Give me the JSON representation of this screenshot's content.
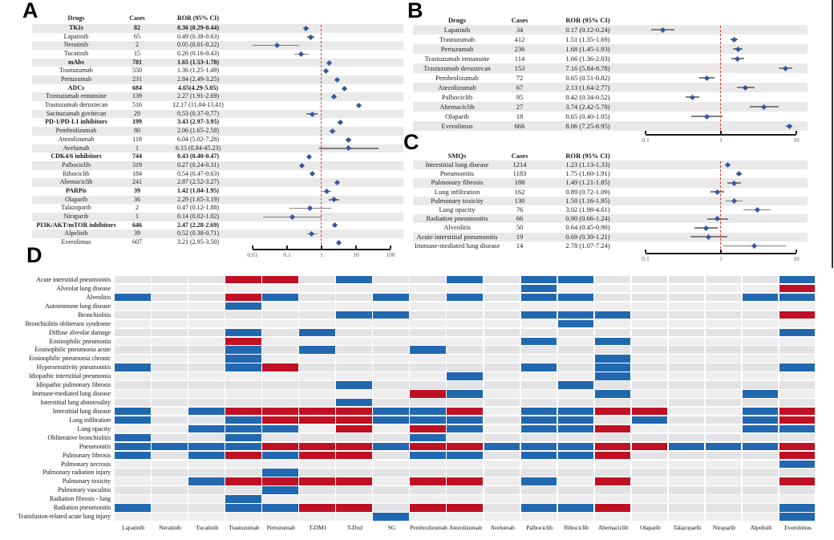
{
  "chart_data": [
    {
      "type": "forest",
      "panel": "A",
      "columns": [
        "Drugs",
        "Cases",
        "ROR (95% CI)"
      ],
      "axis": {
        "min": 0.01,
        "max": 100,
        "ticks": [
          "0.01",
          "0.1",
          "1",
          "10",
          "100"
        ],
        "ref_line": 1
      },
      "rows": [
        {
          "name": "TKIs",
          "cases": "82",
          "ror_text": "0.36 (0.29-0.44)",
          "ror": 0.36,
          "lo": 0.29,
          "hi": 0.44,
          "bold": true
        },
        {
          "name": "Lapatinib",
          "cases": "65",
          "ror_text": "0.49 (0.38-0.63)",
          "ror": 0.49,
          "lo": 0.38,
          "hi": 0.63,
          "bold": false
        },
        {
          "name": "Neratinib",
          "cases": "2",
          "ror_text": "0.05 (0.01-0.22)",
          "ror": 0.05,
          "lo": 0.01,
          "hi": 0.22,
          "bold": false
        },
        {
          "name": "Tucatinib",
          "cases": "15",
          "ror_text": "0.26 (0.16-0.43)",
          "ror": 0.26,
          "lo": 0.16,
          "hi": 0.43,
          "bold": false
        },
        {
          "name": "mAbs",
          "cases": "781",
          "ror_text": "1.65 (1.53-1.78)",
          "ror": 1.65,
          "lo": 1.53,
          "hi": 1.78,
          "bold": true
        },
        {
          "name": "Trastuzumab",
          "cases": "550",
          "ror_text": "1.36 (1.25-1.49)",
          "ror": 1.36,
          "lo": 1.25,
          "hi": 1.49,
          "bold": false
        },
        {
          "name": "Pertuzumab",
          "cases": "231",
          "ror_text": "2.84 (2.49-3.25)",
          "ror": 2.84,
          "lo": 2.49,
          "hi": 3.25,
          "bold": false
        },
        {
          "name": "ADCs",
          "cases": "684",
          "ror_text": "4.65(4.29-5.05)",
          "ror": 4.65,
          "lo": 4.29,
          "hi": 5.05,
          "bold": true
        },
        {
          "name": "Trastuzumab emtansine",
          "cases": "139",
          "ror_text": "2.27 (1.91-2.69)",
          "ror": 2.27,
          "lo": 1.91,
          "hi": 2.69,
          "bold": false
        },
        {
          "name": "Trastuzumab deruxtecan",
          "cases": "516",
          "ror_text": "12.17 (11.04-13.41)",
          "ror": 12.17,
          "lo": 11.04,
          "hi": 13.41,
          "bold": false
        },
        {
          "name": "Sacituzumab govitecan",
          "cases": "29",
          "ror_text": "0.53 (0.37-0.77)",
          "ror": 0.53,
          "lo": 0.37,
          "hi": 0.77,
          "bold": false
        },
        {
          "name": "PD-1/PD-L1 inhibitors",
          "cases": "199",
          "ror_text": "3.43 (2.97-3.95)",
          "ror": 3.43,
          "lo": 2.97,
          "hi": 3.95,
          "bold": true
        },
        {
          "name": "Pembrolizumab",
          "cases": "80",
          "ror_text": "2.06 (1.65-2.58)",
          "ror": 2.06,
          "lo": 1.65,
          "hi": 2.58,
          "bold": false
        },
        {
          "name": "Atezolizumab",
          "cases": "118",
          "ror_text": "6.04 (5.02-7.28)",
          "ror": 6.04,
          "lo": 5.02,
          "hi": 7.28,
          "bold": false
        },
        {
          "name": "Avelumab",
          "cases": "1",
          "ror_text": "6.15 (0.84-45.23)",
          "ror": 6.15,
          "lo": 0.84,
          "hi": 45.23,
          "bold": false
        },
        {
          "name": "CDK4/6 inhibitors",
          "cases": "744",
          "ror_text": "0.43 (0.40-0.47)",
          "ror": 0.43,
          "lo": 0.4,
          "hi": 0.47,
          "bold": true
        },
        {
          "name": "Palbociclib",
          "cases": "319",
          "ror_text": "0.27 (0.24-0.31)",
          "ror": 0.27,
          "lo": 0.24,
          "hi": 0.31,
          "bold": false
        },
        {
          "name": "Ribociclib",
          "cases": "184",
          "ror_text": "0.54 (0.47-0.63)",
          "ror": 0.54,
          "lo": 0.47,
          "hi": 0.63,
          "bold": false
        },
        {
          "name": "Abemaciclib",
          "cases": "241",
          "ror_text": "2.87 (2.52-3.27)",
          "ror": 2.87,
          "lo": 2.52,
          "hi": 3.27,
          "bold": false
        },
        {
          "name": "PARPis",
          "cases": "39",
          "ror_text": "1.42 (1.04-1.95)",
          "ror": 1.42,
          "lo": 1.04,
          "hi": 1.95,
          "bold": true
        },
        {
          "name": "Olaparib",
          "cases": "36",
          "ror_text": "2.29 (1.65-3.19)",
          "ror": 2.29,
          "lo": 1.65,
          "hi": 3.19,
          "bold": false
        },
        {
          "name": "Talazoparib",
          "cases": "2",
          "ror_text": "0.47 (0.12-1.88)",
          "ror": 0.47,
          "lo": 0.12,
          "hi": 1.88,
          "bold": false
        },
        {
          "name": "Niraparib",
          "cases": "1",
          "ror_text": "0.14 (0.02-1.02)",
          "ror": 0.14,
          "lo": 0.02,
          "hi": 1.02,
          "bold": false
        },
        {
          "name": "PI3K/AKT/mTOR inhibitors",
          "cases": "646",
          "ror_text": "2.47 (2.28-2.69)",
          "ror": 2.47,
          "lo": 2.28,
          "hi": 2.69,
          "bold": true
        },
        {
          "name": "Alpelisib",
          "cases": "39",
          "ror_text": "0.52 (0.38-0.71)",
          "ror": 0.52,
          "lo": 0.38,
          "hi": 0.71,
          "bold": false
        },
        {
          "name": "Everolimus",
          "cases": "607",
          "ror_text": "3.21 (2.95-3.50)",
          "ror": 3.21,
          "lo": 2.95,
          "hi": 3.5,
          "bold": false
        }
      ]
    },
    {
      "type": "forest",
      "panel": "B",
      "columns": [
        "Drugs",
        "Cases",
        "ROR (95% CI)"
      ],
      "axis": {
        "min": 0.1,
        "max": 10,
        "ticks": [
          "0.1",
          "1",
          "10"
        ],
        "ref_line": 1
      },
      "rows": [
        {
          "name": "Lapatinib",
          "cases": "34",
          "ror_text": "0.17 (0.12-0.24)",
          "ror": 0.17,
          "lo": 0.12,
          "hi": 0.24,
          "bold": false
        },
        {
          "name": "Trastuzumab",
          "cases": "412",
          "ror_text": "1.51 (1.35-1.69)",
          "ror": 1.51,
          "lo": 1.35,
          "hi": 1.69,
          "bold": false
        },
        {
          "name": "Pertuzumab",
          "cases": "236",
          "ror_text": "1.68 (1.45-1.93)",
          "ror": 1.68,
          "lo": 1.45,
          "hi": 1.93,
          "bold": false
        },
        {
          "name": "Trastuzumab emtansine",
          "cases": "114",
          "ror_text": "1.66 (1.36-2.03)",
          "ror": 1.66,
          "lo": 1.36,
          "hi": 2.03,
          "bold": false
        },
        {
          "name": "Trastuzumab deruxtecan",
          "cases": "153",
          "ror_text": "7.16 (5.84-8.78)",
          "ror": 7.16,
          "lo": 5.84,
          "hi": 8.78,
          "bold": false
        },
        {
          "name": "Pembrolizumab",
          "cases": "72",
          "ror_text": "0.65 (0.51-0.82)",
          "ror": 0.65,
          "lo": 0.51,
          "hi": 0.82,
          "bold": false
        },
        {
          "name": "Atezolizumab",
          "cases": "67",
          "ror_text": "2.13 (1.64-2.77)",
          "ror": 2.13,
          "lo": 1.64,
          "hi": 2.77,
          "bold": false
        },
        {
          "name": "Palbociclib",
          "cases": "95",
          "ror_text": "0.42 (0.34-0.52)",
          "ror": 0.42,
          "lo": 0.34,
          "hi": 0.52,
          "bold": false
        },
        {
          "name": "Abemaciclib",
          "cases": "27",
          "ror_text": "3.74 (2.42-5.78)",
          "ror": 3.74,
          "lo": 2.42,
          "hi": 5.78,
          "bold": false
        },
        {
          "name": "Olaparib",
          "cases": "18",
          "ror_text": "0.65 (0.40-1.05)",
          "ror": 0.65,
          "lo": 0.4,
          "hi": 1.05,
          "bold": false
        },
        {
          "name": "Everolimus",
          "cases": "666",
          "ror_text": "8.06 (7.25-8.95)",
          "ror": 8.06,
          "lo": 7.25,
          "hi": 8.95,
          "bold": false
        }
      ]
    },
    {
      "type": "forest",
      "panel": "C",
      "columns": [
        "SMQs",
        "Cases",
        "ROR (95% CI)"
      ],
      "axis": {
        "min": 0.1,
        "max": 10,
        "ticks": [
          "0.1",
          "1",
          "10"
        ],
        "ref_line": 1
      },
      "rows": [
        {
          "name": "Interstitial lung disease",
          "cases": "1214",
          "ror_text": "1.23 (1.13-1.33)",
          "ror": 1.23,
          "lo": 1.13,
          "hi": 1.33,
          "bold": false
        },
        {
          "name": "Pneumonitis",
          "cases": "1183",
          "ror_text": "1.75 (1.60-1.91)",
          "ror": 1.75,
          "lo": 1.6,
          "hi": 1.91,
          "bold": false
        },
        {
          "name": "Pulmonary fibrosis",
          "cases": "188",
          "ror_text": "1.49 (1.21-1.85)",
          "ror": 1.49,
          "lo": 1.21,
          "hi": 1.85,
          "bold": false
        },
        {
          "name": "Lung infiltration",
          "cases": "162",
          "ror_text": "0.89 (0.72-1.09)",
          "ror": 0.89,
          "lo": 0.72,
          "hi": 1.09,
          "bold": false
        },
        {
          "name": "Pulmonary toxicity",
          "cases": "130",
          "ror_text": "1.50 (1.16-1.95)",
          "ror": 1.5,
          "lo": 1.16,
          "hi": 1.95,
          "bold": false
        },
        {
          "name": "Lung opacity",
          "cases": "76",
          "ror_text": "3.02 (1.98-4.61)",
          "ror": 3.02,
          "lo": 1.98,
          "hi": 4.61,
          "bold": false
        },
        {
          "name": "Radiation pneumonitis",
          "cases": "66",
          "ror_text": "0.90 (0.66-1.24)",
          "ror": 0.9,
          "lo": 0.66,
          "hi": 1.24,
          "bold": false
        },
        {
          "name": "Alveolitis",
          "cases": "50",
          "ror_text": "0.64 (0.45-0.90)",
          "ror": 0.64,
          "lo": 0.45,
          "hi": 0.9,
          "bold": false
        },
        {
          "name": "Acute interstitial pneumonitis",
          "cases": "19",
          "ror_text": "0.69 (0.39-1.21)",
          "ror": 0.69,
          "lo": 0.39,
          "hi": 1.21,
          "bold": false
        },
        {
          "name": "Immune-mediated lung disease",
          "cases": "14",
          "ror_text": "2.78 (1.07-7.24)",
          "ror": 2.78,
          "lo": 1.07,
          "hi": 7.24,
          "bold": false
        }
      ]
    },
    {
      "type": "heatmap",
      "panel": "D",
      "x_drugs": [
        "Lapatinib",
        "Neratinib",
        "Tucatinib",
        "Trastuzumab",
        "Pertuzumab",
        "T-DM1",
        "T-Dxd",
        "SG",
        "Pembrolizumab",
        "Atezolizumab",
        "Avelumab",
        "Palbociclib",
        "Ribociclib",
        "Abemaciclib",
        "Olaparib",
        "Talazoparib",
        "Niraparib",
        "Alpelisib",
        "Everolimus"
      ],
      "y_conditions": [
        "Acute interstitial pneumonitis",
        "Alveolar lung disease",
        "Alveolitis",
        "Autoimmune lung disease",
        "Bronchiolitis",
        "Bronchiolitis obliterans syndrome",
        "Diffuse alveolar damage",
        "Eosinophilic pneumonia",
        "Eosinophilic pneumonia acute",
        "Eosinophilic pneumonia chronic",
        "Hypersensitivity pneumonitis",
        "Idiopathic interstitial pneumonia",
        "Idiopathic pulmonary fibrosis",
        "Immune-mediated lung disease",
        "Interstitial lung abnormality",
        "Interstitial lung disease",
        "Lung infiltration",
        "Lung opacity",
        "Obliterative bronchiolitis",
        "Pneumonitis",
        "Pulmonary fibrosis",
        "Pulmonary necrosis",
        "Pulmonary radiation injury",
        "Pulmonary toxicity",
        "Pulmonary vasculitis",
        "Radiation fibrosis - lung",
        "Radiation pneumonitis",
        "Transfusion-related acute lung injury"
      ],
      "cell_code_legend": {
        ".": "no signal",
        "B": "blue signal",
        "R": "red signal"
      },
      "matrix": [
        "...RR.B..B.BB.....B",
        "...........B......R",
        "B..RB..B.B.BB....BB",
        "...B...............",
        "......BB...BBB....R",
        "............B......",
        "...B.B............B",
        "...R.......B.B.....",
        "...B.B..B..........",
        "...B.........B.....",
        "B..BR......B.B....B",
        ".........B...B.....",
        "......B.....B......",
        "........RB...B...B.",
        "......B............",
        "B.BRRRRBBR.BBRR..BR",
        "B..BRRRBBB.BB.B..BR",
        "..BBB.R.RB.BBR...BB",
        "B..B....B..........",
        "BBBBRRRBRRBBBRRBBBR",
        "B.BRBRR.BB.BBR....R",
        "..................B",
        "....B..............",
        "..BRRRR.RR.B.R....R",
        "....B..............",
        "...B...............",
        "B..BBRR.RR.BBR....B",
        ".......B..........B"
      ],
      "colors": {
        "blue": "#2268b0",
        "red": "#c01023",
        "empty_dark": "#e3e3e5",
        "empty_light": "#eeeeee"
      }
    }
  ],
  "style_colors": {
    "table_stripe": "#e9e9e9",
    "forest_marker": "#34589f",
    "ci_line": "#7f7f7f",
    "reference_line": "#e4362a",
    "axis": "#1a1a1a"
  }
}
